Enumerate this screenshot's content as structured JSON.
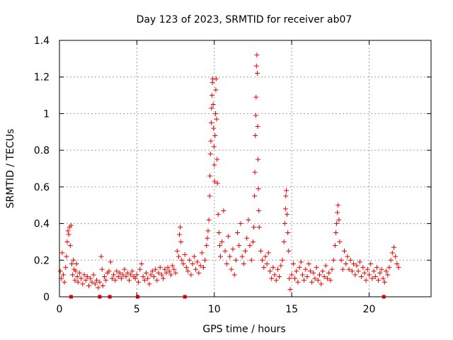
{
  "chart_data": {
    "type": "scatter",
    "title": "Day 123 of 2023, SRMTID for receiver ab07",
    "xlabel": "GPS time / hours",
    "ylabel": "SRMTID / TECUs",
    "xlim": [
      0,
      24
    ],
    "ylim": [
      0,
      1.4
    ],
    "xticks": [
      0,
      5,
      10,
      15,
      20
    ],
    "xtick_labels": [
      "0",
      "5",
      "10",
      "15",
      "20"
    ],
    "yticks": [
      0,
      0.2,
      0.4,
      0.6,
      0.8,
      1.0,
      1.2,
      1.4
    ],
    "ytick_labels": [
      "0",
      "0.2",
      "0.4",
      "0.6",
      "0.8",
      "1",
      "1.2",
      "1.4"
    ],
    "grid": true,
    "marker": "plus",
    "color": "#ee0000",
    "baseline_markers_x": [
      0.75,
      2.6,
      3.25,
      5.05,
      8.1,
      20.95
    ],
    "series": [
      {
        "name": "SRMTID",
        "points": [
          [
            0.05,
            0.14
          ],
          [
            0.12,
            0.1
          ],
          [
            0.18,
            0.24
          ],
          [
            0.25,
            0.12
          ],
          [
            0.32,
            0.08
          ],
          [
            0.4,
            0.16
          ],
          [
            0.45,
            0.22
          ],
          [
            0.5,
            0.3
          ],
          [
            0.55,
            0.36
          ],
          [
            0.6,
            0.34
          ],
          [
            0.65,
            0.38
          ],
          [
            0.7,
            0.28
          ],
          [
            0.75,
            0.39
          ],
          [
            0.8,
            0.18
          ],
          [
            0.85,
            0.12
          ],
          [
            0.9,
            0.2
          ],
          [
            0.95,
            0.15
          ],
          [
            1.0,
            0.09
          ],
          [
            1.05,
            0.14
          ],
          [
            1.1,
            0.18
          ],
          [
            1.15,
            0.11
          ],
          [
            1.2,
            0.08
          ],
          [
            1.3,
            0.13
          ],
          [
            1.4,
            0.1
          ],
          [
            1.5,
            0.07
          ],
          [
            1.6,
            0.12
          ],
          [
            1.7,
            0.09
          ],
          [
            1.8,
            0.11
          ],
          [
            1.9,
            0.06
          ],
          [
            2.0,
            0.1
          ],
          [
            2.1,
            0.08
          ],
          [
            2.2,
            0.12
          ],
          [
            2.3,
            0.07
          ],
          [
            2.4,
            0.09
          ],
          [
            2.5,
            0.05
          ],
          [
            2.6,
            0.08
          ],
          [
            2.7,
            0.22
          ],
          [
            2.75,
            0.15
          ],
          [
            2.8,
            0.06
          ],
          [
            2.9,
            0.11
          ],
          [
            3.0,
            0.09
          ],
          [
            3.1,
            0.13
          ],
          [
            3.2,
            0.14
          ],
          [
            3.3,
            0.19
          ],
          [
            3.4,
            0.1
          ],
          [
            3.5,
            0.12
          ],
          [
            3.6,
            0.09
          ],
          [
            3.7,
            0.14
          ],
          [
            3.8,
            0.11
          ],
          [
            3.9,
            0.13
          ],
          [
            4.0,
            0.1
          ],
          [
            4.1,
            0.12
          ],
          [
            4.2,
            0.15
          ],
          [
            4.3,
            0.11
          ],
          [
            4.4,
            0.13
          ],
          [
            4.5,
            0.09
          ],
          [
            4.6,
            0.12
          ],
          [
            4.7,
            0.14
          ],
          [
            4.8,
            0.11
          ],
          [
            4.9,
            0.1
          ],
          [
            5.0,
            0.12
          ],
          [
            5.1,
            0.08
          ],
          [
            5.2,
            0.15
          ],
          [
            5.3,
            0.18
          ],
          [
            5.4,
            0.11
          ],
          [
            5.5,
            0.09
          ],
          [
            5.6,
            0.13
          ],
          [
            5.7,
            0.1
          ],
          [
            5.8,
            0.07
          ],
          [
            5.9,
            0.12
          ],
          [
            6.0,
            0.14
          ],
          [
            6.1,
            0.11
          ],
          [
            6.2,
            0.15
          ],
          [
            6.3,
            0.09
          ],
          [
            6.4,
            0.13
          ],
          [
            6.5,
            0.16
          ],
          [
            6.6,
            0.12
          ],
          [
            6.7,
            0.1
          ],
          [
            6.8,
            0.15
          ],
          [
            6.9,
            0.13
          ],
          [
            7.0,
            0.16
          ],
          [
            7.1,
            0.14
          ],
          [
            7.2,
            0.12
          ],
          [
            7.3,
            0.17
          ],
          [
            7.4,
            0.15
          ],
          [
            7.5,
            0.13
          ],
          [
            7.6,
            0.25
          ],
          [
            7.7,
            0.22
          ],
          [
            7.75,
            0.34
          ],
          [
            7.8,
            0.38
          ],
          [
            7.85,
            0.3
          ],
          [
            7.9,
            0.2
          ],
          [
            8.0,
            0.18
          ],
          [
            8.1,
            0.23
          ],
          [
            8.2,
            0.16
          ],
          [
            8.3,
            0.14
          ],
          [
            8.4,
            0.2
          ],
          [
            8.5,
            0.12
          ],
          [
            8.6,
            0.18
          ],
          [
            8.7,
            0.22
          ],
          [
            8.8,
            0.15
          ],
          [
            8.9,
            0.19
          ],
          [
            9.0,
            0.13
          ],
          [
            9.1,
            0.17
          ],
          [
            9.2,
            0.24
          ],
          [
            9.3,
            0.16
          ],
          [
            9.4,
            0.2
          ],
          [
            9.5,
            0.28
          ],
          [
            9.55,
            0.32
          ],
          [
            9.6,
            0.36
          ],
          [
            9.65,
            0.42
          ],
          [
            9.7,
            0.55
          ],
          [
            9.72,
            0.66
          ],
          [
            9.75,
            0.78
          ],
          [
            9.78,
            0.85
          ],
          [
            9.8,
            0.95
          ],
          [
            9.82,
            1.03
          ],
          [
            9.85,
            1.1
          ],
          [
            9.88,
            1.17
          ],
          [
            9.9,
            1.19
          ],
          [
            9.93,
            1.05
          ],
          [
            9.95,
            0.92
          ],
          [
            9.98,
            0.82
          ],
          [
            10.0,
            0.72
          ],
          [
            10.02,
            0.63
          ],
          [
            10.05,
            0.88
          ],
          [
            10.08,
            1.0
          ],
          [
            10.1,
            1.13
          ],
          [
            10.12,
            1.19
          ],
          [
            10.15,
            0.97
          ],
          [
            10.18,
            0.75
          ],
          [
            10.2,
            0.62
          ],
          [
            10.25,
            0.45
          ],
          [
            10.3,
            0.35
          ],
          [
            10.35,
            0.28
          ],
          [
            10.4,
            0.22
          ],
          [
            10.5,
            0.3
          ],
          [
            10.6,
            0.47
          ],
          [
            10.7,
            0.25
          ],
          [
            10.8,
            0.18
          ],
          [
            10.9,
            0.33
          ],
          [
            11.0,
            0.22
          ],
          [
            11.1,
            0.15
          ],
          [
            11.2,
            0.26
          ],
          [
            11.3,
            0.12
          ],
          [
            11.4,
            0.2
          ],
          [
            11.5,
            0.35
          ],
          [
            11.6,
            0.28
          ],
          [
            11.7,
            0.4
          ],
          [
            11.8,
            0.22
          ],
          [
            11.9,
            0.18
          ],
          [
            12.0,
            0.25
          ],
          [
            12.1,
            0.32
          ],
          [
            12.2,
            0.42
          ],
          [
            12.3,
            0.28
          ],
          [
            12.4,
            0.2
          ],
          [
            12.5,
            0.3
          ],
          [
            12.55,
            0.38
          ],
          [
            12.6,
            0.55
          ],
          [
            12.62,
            0.68
          ],
          [
            12.65,
            0.88
          ],
          [
            12.68,
            0.99
          ],
          [
            12.7,
            1.09
          ],
          [
            12.72,
            1.26
          ],
          [
            12.75,
            1.32
          ],
          [
            12.78,
            1.22
          ],
          [
            12.8,
            0.93
          ],
          [
            12.82,
            0.75
          ],
          [
            12.85,
            0.59
          ],
          [
            12.88,
            0.47
          ],
          [
            12.9,
            0.38
          ],
          [
            13.0,
            0.25
          ],
          [
            13.1,
            0.2
          ],
          [
            13.2,
            0.16
          ],
          [
            13.3,
            0.22
          ],
          [
            13.4,
            0.18
          ],
          [
            13.5,
            0.24
          ],
          [
            13.6,
            0.14
          ],
          [
            13.7,
            0.1
          ],
          [
            13.8,
            0.16
          ],
          [
            13.9,
            0.12
          ],
          [
            14.0,
            0.09
          ],
          [
            14.1,
            0.15
          ],
          [
            14.2,
            0.11
          ],
          [
            14.3,
            0.17
          ],
          [
            14.4,
            0.2
          ],
          [
            14.5,
            0.3
          ],
          [
            14.55,
            0.4
          ],
          [
            14.6,
            0.48
          ],
          [
            14.62,
            0.55
          ],
          [
            14.65,
            0.58
          ],
          [
            14.7,
            0.45
          ],
          [
            14.75,
            0.35
          ],
          [
            14.8,
            0.25
          ],
          [
            14.85,
            0.1
          ],
          [
            14.9,
            0.04
          ],
          [
            15.0,
            0.12
          ],
          [
            15.1,
            0.18
          ],
          [
            15.2,
            0.1
          ],
          [
            15.3,
            0.14
          ],
          [
            15.4,
            0.08
          ],
          [
            15.5,
            0.16
          ],
          [
            15.6,
            0.19
          ],
          [
            15.7,
            0.12
          ],
          [
            15.8,
            0.09
          ],
          [
            15.9,
            0.15
          ],
          [
            16.0,
            0.11
          ],
          [
            16.1,
            0.18
          ],
          [
            16.2,
            0.14
          ],
          [
            16.3,
            0.08
          ],
          [
            16.4,
            0.13
          ],
          [
            16.5,
            0.1
          ],
          [
            16.6,
            0.16
          ],
          [
            16.7,
            0.09
          ],
          [
            16.8,
            0.12
          ],
          [
            16.9,
            0.07
          ],
          [
            17.0,
            0.14
          ],
          [
            17.1,
            0.11
          ],
          [
            17.2,
            0.17
          ],
          [
            17.3,
            0.1
          ],
          [
            17.4,
            0.13
          ],
          [
            17.5,
            0.09
          ],
          [
            17.6,
            0.15
          ],
          [
            17.7,
            0.2
          ],
          [
            17.8,
            0.28
          ],
          [
            17.85,
            0.35
          ],
          [
            17.9,
            0.4
          ],
          [
            17.95,
            0.46
          ],
          [
            18.0,
            0.5
          ],
          [
            18.05,
            0.42
          ],
          [
            18.1,
            0.3
          ],
          [
            18.2,
            0.2
          ],
          [
            18.3,
            0.15
          ],
          [
            18.4,
            0.25
          ],
          [
            18.5,
            0.18
          ],
          [
            18.6,
            0.22
          ],
          [
            18.7,
            0.15
          ],
          [
            18.8,
            0.2
          ],
          [
            18.9,
            0.14
          ],
          [
            19.0,
            0.18
          ],
          [
            19.1,
            0.12
          ],
          [
            19.2,
            0.17
          ],
          [
            19.3,
            0.14
          ],
          [
            19.4,
            0.19
          ],
          [
            19.5,
            0.11
          ],
          [
            19.6,
            0.16
          ],
          [
            19.7,
            0.13
          ],
          [
            19.8,
            0.09
          ],
          [
            19.9,
            0.15
          ],
          [
            20.0,
            0.12
          ],
          [
            20.1,
            0.18
          ],
          [
            20.2,
            0.1
          ],
          [
            20.3,
            0.14
          ],
          [
            20.4,
            0.11
          ],
          [
            20.5,
            0.16
          ],
          [
            20.6,
            0.09
          ],
          [
            20.7,
            0.13
          ],
          [
            20.8,
            0.15
          ],
          [
            20.9,
            0.1
          ],
          [
            21.0,
            0.08
          ],
          [
            21.1,
            0.14
          ],
          [
            21.2,
            0.12
          ],
          [
            21.3,
            0.16
          ],
          [
            21.4,
            0.2
          ],
          [
            21.5,
            0.24
          ],
          [
            21.6,
            0.27
          ],
          [
            21.7,
            0.22
          ],
          [
            21.8,
            0.18
          ],
          [
            21.9,
            0.16
          ]
        ]
      }
    ]
  }
}
